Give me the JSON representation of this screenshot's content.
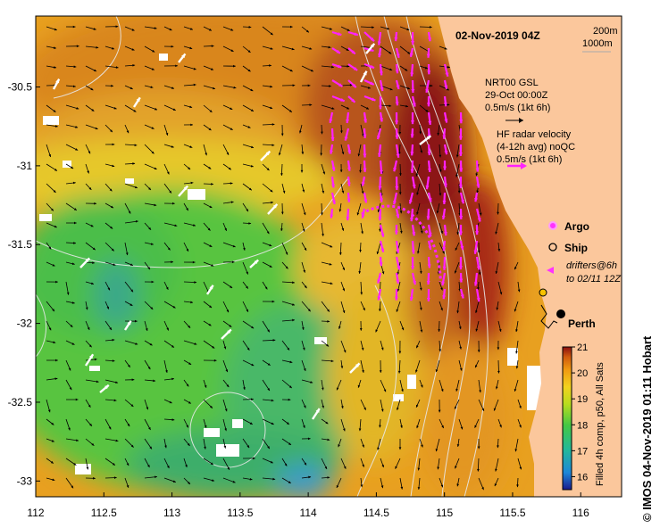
{
  "map": {
    "date_title": "02-Nov-2019 04Z",
    "depth_labels": [
      "200m",
      "1000m"
    ],
    "annotations": {
      "gsl_line1": "NRT00 GSL",
      "gsl_line2": "29-Oct 00:00Z",
      "gsl_scale": "0.5m/s (1kt 6h)",
      "hf_line1": "HF radar velocity",
      "hf_line2": "(4-12h avg) noQC",
      "hf_scale": "0.5m/s (1kt 6h)"
    },
    "legend": {
      "argo": "Argo",
      "ship": "Ship",
      "drifters_line1": "drifters@6h",
      "drifters_line2": "to 02/11 12Z",
      "argo_color": "#ff33ff",
      "drifter_color": "#ff33ff"
    },
    "city": "Perth",
    "colorbar": {
      "ticks": [
        "21",
        "20",
        "19",
        "18",
        "17",
        "16"
      ],
      "min": 15.5,
      "max": 21,
      "caption": "Filled 4h comp, p50, All Sats"
    },
    "credit": "© IMOS 04-Nov-2019 01:11 Hobart",
    "x_ticks": [
      "112",
      "112.5",
      "113",
      "113.5",
      "114",
      "114.5",
      "115",
      "115.5",
      "116"
    ],
    "y_ticks": [
      "-30.5",
      "-31",
      "-31.5",
      "-32",
      "-32.5",
      "-33"
    ],
    "lon_range": [
      112,
      116.3
    ],
    "lat_range": [
      -33.1,
      -30.05
    ],
    "colors": {
      "land": "#fbc79c",
      "hf_arrows": "#ff22ff",
      "gsl_arrows": "#000000",
      "drifter_arrows": "#ffffff"
    }
  }
}
